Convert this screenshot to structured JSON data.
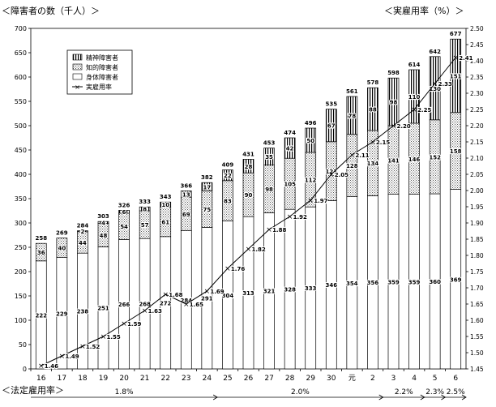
{
  "chart_data": {
    "type": "bar",
    "y_left_title": "＜障害者の数（千人）＞",
    "y_right_title": "＜実雇用率（%）＞",
    "x_footer_title": "＜法定雇用率＞",
    "categories": [
      "16",
      "17",
      "18",
      "19",
      "20",
      "21",
      "22",
      "23",
      "24",
      "25",
      "26",
      "27",
      "28",
      "29",
      "30",
      "元",
      "2",
      "3",
      "4",
      "5",
      "6"
    ],
    "series": [
      {
        "name": "精神障害者",
        "values": [
          0,
          0,
          2,
          4,
          6,
          8,
          10,
          13,
          17,
          22,
          28,
          35,
          42,
          50,
          67,
          78,
          88,
          98,
          110,
          130,
          151
        ]
      },
      {
        "name": "知的障害者",
        "values": [
          36,
          40,
          44,
          48,
          54,
          57,
          61,
          69,
          75,
          83,
          90,
          98,
          105,
          112,
          121,
          128,
          134,
          141,
          146,
          152,
          158
        ]
      },
      {
        "name": "身体障害者",
        "values": [
          222,
          229,
          238,
          251,
          266,
          268,
          272,
          284,
          291,
          304,
          313,
          321,
          328,
          333,
          346,
          354,
          356,
          359,
          359,
          360,
          369
        ]
      },
      {
        "name": "実雇用率",
        "values": [
          1.46,
          1.49,
          1.52,
          1.55,
          1.59,
          1.63,
          1.68,
          1.65,
          1.69,
          1.76,
          1.82,
          1.88,
          1.92,
          1.97,
          2.05,
          2.11,
          2.15,
          2.2,
          2.25,
          2.33,
          2.41
        ]
      }
    ],
    "totals": [
      258,
      269,
      284,
      303,
      326,
      333,
      343,
      366,
      382,
      409,
      431,
      453,
      474,
      496,
      535,
      561,
      578,
      598,
      614,
      642,
      677
    ],
    "ylim_left": [
      0,
      700
    ],
    "yticks_left": [
      0,
      50,
      100,
      150,
      200,
      250,
      300,
      350,
      400,
      450,
      500,
      550,
      600,
      650,
      700
    ],
    "ylim_right": [
      1.45,
      2.5
    ],
    "yticks_right": [
      "1.45",
      "1.50",
      "1.55",
      "1.60",
      "1.65",
      "1.70",
      "1.75",
      "1.80",
      "1.85",
      "1.90",
      "1.95",
      "2.00",
      "2.05",
      "2.10",
      "2.15",
      "2.20",
      "2.25",
      "2.30",
      "2.35",
      "2.40",
      "2.45",
      "2.50"
    ],
    "legal_rates": [
      {
        "label": "1.8%",
        "from": 0,
        "to": 9
      },
      {
        "label": "2.0%",
        "from": 9,
        "to": 17
      },
      {
        "label": "2.2%",
        "from": 17,
        "to": 19
      },
      {
        "label": "2.3%",
        "from": 19,
        "to": 20
      },
      {
        "label": "2.5%",
        "from": 20,
        "to": 21
      }
    ],
    "legend_placement": "top-left",
    "grid": false
  }
}
